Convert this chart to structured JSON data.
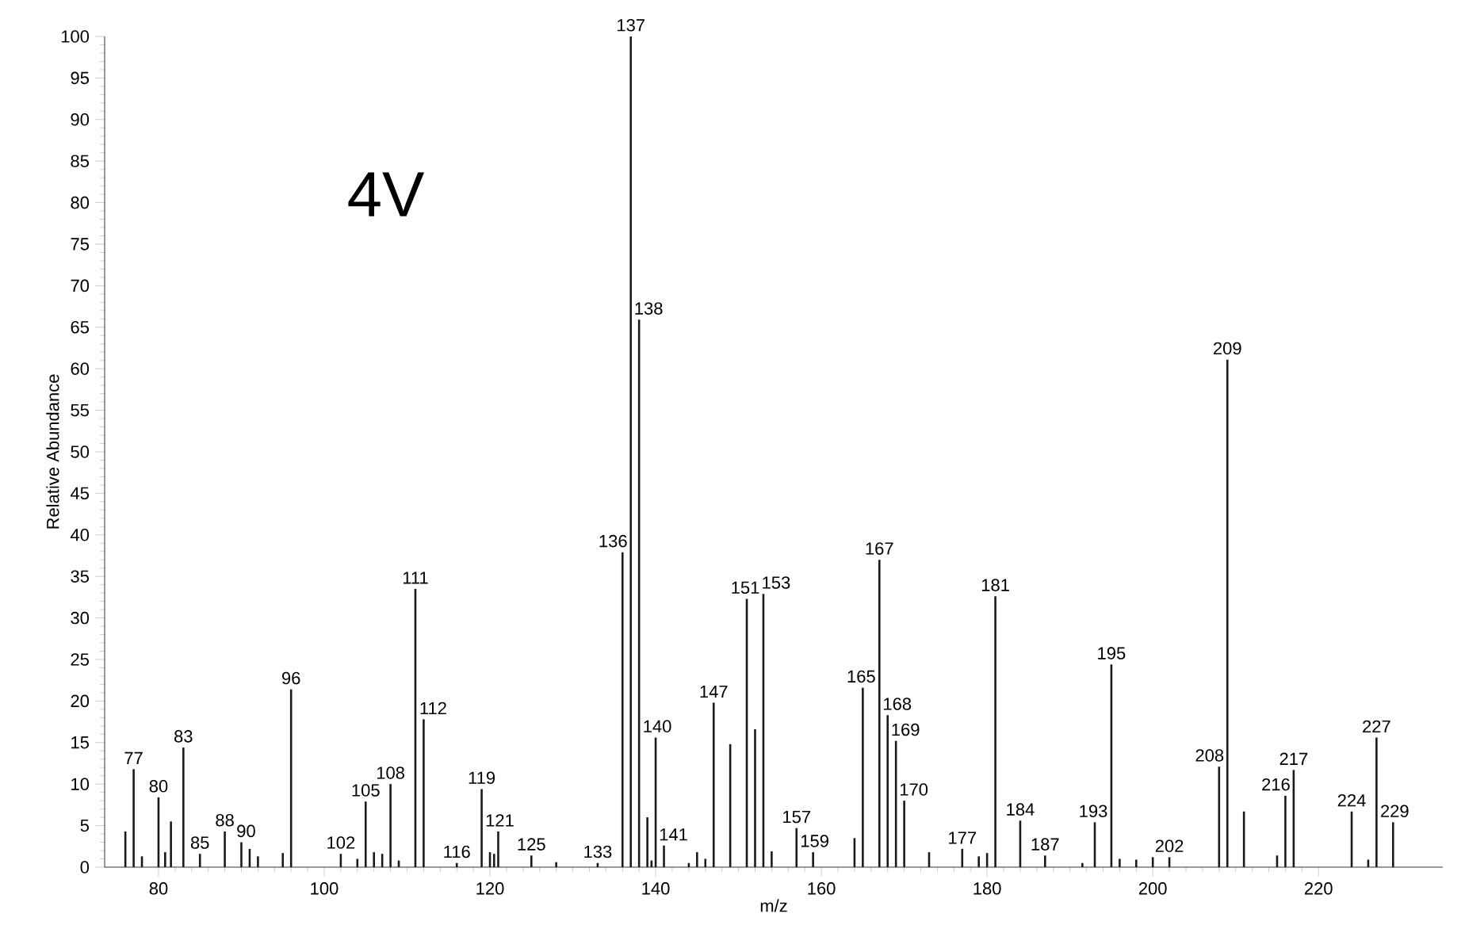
{
  "chart_data": {
    "type": "bar",
    "title": "4V",
    "xlabel": "m/z",
    "ylabel": "Relative Abundance",
    "color": "#1a1a1a",
    "x": [
      76,
      77,
      78,
      80,
      80.8,
      81.5,
      83,
      85,
      88,
      90,
      91,
      92,
      95,
      96,
      102,
      104,
      105,
      106,
      107,
      108,
      109,
      111,
      112,
      116,
      119,
      120,
      120.5,
      121,
      125,
      128,
      133,
      136,
      137,
      138,
      139,
      139.5,
      140,
      141,
      144,
      145,
      146,
      147,
      149,
      151,
      152,
      153,
      154,
      157,
      159,
      164,
      165,
      167,
      168,
      169,
      170,
      173,
      177,
      179,
      180,
      181,
      184,
      187,
      191.5,
      193,
      195,
      196,
      198,
      200,
      202,
      208,
      209,
      211,
      215,
      216,
      217,
      224,
      226,
      227,
      229
    ],
    "values": [
      4.3,
      11.8,
      1.3,
      8.4,
      1.8,
      5.5,
      14.4,
      1.6,
      4.3,
      3.0,
      2.2,
      1.3,
      1.7,
      21.4,
      1.6,
      1.0,
      7.9,
      1.8,
      1.6,
      10.0,
      0.8,
      33.5,
      17.8,
      0.5,
      9.4,
      1.8,
      1.6,
      4.3,
      1.4,
      0.6,
      0.5,
      37.9,
      100,
      65.9,
      6.0,
      0.8,
      15.6,
      2.6,
      0.5,
      1.8,
      1.0,
      19.8,
      14.8,
      32.3,
      16.6,
      32.9,
      1.9,
      4.7,
      1.8,
      3.5,
      21.6,
      37.0,
      18.3,
      15.2,
      8.0,
      1.8,
      2.2,
      1.3,
      1.7,
      32.6,
      5.6,
      1.4,
      0.5,
      5.4,
      24.4,
      1.0,
      0.9,
      1.2,
      1.2,
      12.1,
      61.1,
      6.7,
      1.4,
      8.6,
      11.7,
      6.7,
      0.9,
      15.6,
      5.4
    ],
    "annotations": [
      {
        "text": "77",
        "x": 77,
        "y": 11.8
      },
      {
        "text": "80",
        "x": 80,
        "y": 8.4
      },
      {
        "text": "83",
        "x": 83,
        "y": 14.4
      },
      {
        "text": "85",
        "x": 85,
        "y": 1.6
      },
      {
        "text": "88",
        "x": 88,
        "y": 4.3
      },
      {
        "text": "90",
        "x": 90,
        "y": 3.0
      },
      {
        "text": "96",
        "x": 96,
        "y": 21.4
      },
      {
        "text": "102",
        "x": 102,
        "y": 1.6
      },
      {
        "text": "105",
        "x": 105,
        "y": 7.9
      },
      {
        "text": "108",
        "x": 108,
        "y": 10.0
      },
      {
        "text": "111",
        "x": 111,
        "y": 33.5
      },
      {
        "text": "112",
        "x": 112,
        "y": 17.8
      },
      {
        "text": "116",
        "x": 116,
        "y": 0.5
      },
      {
        "text": "119",
        "x": 119,
        "y": 9.4
      },
      {
        "text": "121",
        "x": 121,
        "y": 4.3
      },
      {
        "text": "125",
        "x": 125,
        "y": 1.4
      },
      {
        "text": "133",
        "x": 133,
        "y": 0.5
      },
      {
        "text": "136",
        "x": 136,
        "y": 37.9
      },
      {
        "text": "137",
        "x": 137,
        "y": 100
      },
      {
        "text": "138",
        "x": 138,
        "y": 65.9
      },
      {
        "text": "140",
        "x": 140,
        "y": 15.6
      },
      {
        "text": "141",
        "x": 141,
        "y": 2.6
      },
      {
        "text": "147",
        "x": 147,
        "y": 19.8
      },
      {
        "text": "151",
        "x": 151,
        "y": 32.3
      },
      {
        "text": "153",
        "x": 153,
        "y": 32.9
      },
      {
        "text": "157",
        "x": 157,
        "y": 4.7
      },
      {
        "text": "159",
        "x": 159,
        "y": 1.8
      },
      {
        "text": "165",
        "x": 165,
        "y": 21.6
      },
      {
        "text": "167",
        "x": 167,
        "y": 37.0
      },
      {
        "text": "168",
        "x": 168,
        "y": 18.3
      },
      {
        "text": "169",
        "x": 169,
        "y": 15.2
      },
      {
        "text": "170",
        "x": 170,
        "y": 8.0
      },
      {
        "text": "177",
        "x": 177,
        "y": 2.2
      },
      {
        "text": "181",
        "x": 181,
        "y": 32.6
      },
      {
        "text": "184",
        "x": 184,
        "y": 5.6
      },
      {
        "text": "187",
        "x": 187,
        "y": 1.4
      },
      {
        "text": "193",
        "x": 193,
        "y": 5.4
      },
      {
        "text": "195",
        "x": 195,
        "y": 24.4
      },
      {
        "text": "202",
        "x": 202,
        "y": 1.2
      },
      {
        "text": "208",
        "x": 208,
        "y": 12.1
      },
      {
        "text": "209",
        "x": 209,
        "y": 61.1
      },
      {
        "text": "216",
        "x": 216,
        "y": 8.6
      },
      {
        "text": "217",
        "x": 217,
        "y": 11.7
      },
      {
        "text": "224",
        "x": 224,
        "y": 6.7
      },
      {
        "text": "227",
        "x": 227,
        "y": 15.6
      },
      {
        "text": "229",
        "x": 229,
        "y": 5.4
      }
    ],
    "xlim": [
      73.5,
      235
    ],
    "ylim": [
      0,
      100
    ],
    "xticks": [
      80,
      100,
      120,
      140,
      160,
      180,
      200,
      220
    ],
    "yticks": [
      0,
      5,
      10,
      15,
      20,
      25,
      30,
      35,
      40,
      45,
      50,
      55,
      60,
      65,
      70,
      75,
      80,
      85,
      90,
      95,
      100
    ]
  }
}
